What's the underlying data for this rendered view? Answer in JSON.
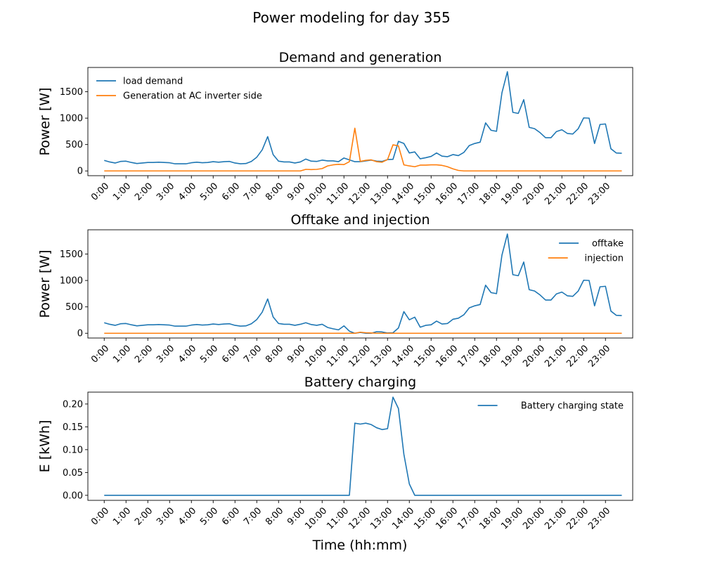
{
  "figure": {
    "suptitle": "Power modeling for day 355",
    "xlabel": "Time (hh:mm)"
  },
  "colors": {
    "blue": "#1f77b4",
    "orange": "#ff7f0e"
  },
  "chart_data": [
    {
      "type": "line",
      "title": "Demand and generation",
      "ylabel": "Power [W]",
      "xlabel": "",
      "xlim": [
        -0.75,
        24.25
      ],
      "ylim": [
        -90,
        1960
      ],
      "yticks": [
        0,
        500,
        1000,
        1500
      ],
      "ytick_labels": [
        "0",
        "500",
        "1000",
        "1500"
      ],
      "xticks": [
        0,
        1,
        2,
        3,
        4,
        5,
        6,
        7,
        8,
        9,
        10,
        11,
        12,
        13,
        14,
        15,
        16,
        17,
        18,
        19,
        20,
        21,
        22,
        23
      ],
      "xtick_labels": [
        "0:00",
        "1:00",
        "2:00",
        "3:00",
        "4:00",
        "5:00",
        "6:00",
        "7:00",
        "8:00",
        "9:00",
        "10:00",
        "11:00",
        "12:00",
        "13:00",
        "14:00",
        "15:00",
        "16:00",
        "17:00",
        "18:00",
        "19:00",
        "20:00",
        "21:00",
        "22:00",
        "23:00"
      ],
      "legend": "top-left",
      "x": [
        0,
        0.25,
        0.5,
        0.75,
        1,
        1.25,
        1.5,
        1.75,
        2,
        2.25,
        2.5,
        2.75,
        3,
        3.25,
        3.5,
        3.75,
        4,
        4.25,
        4.5,
        4.75,
        5,
        5.25,
        5.5,
        5.75,
        6,
        6.25,
        6.5,
        6.75,
        7,
        7.25,
        7.5,
        7.75,
        8,
        8.25,
        8.5,
        8.75,
        9,
        9.25,
        9.5,
        9.75,
        10,
        10.25,
        10.5,
        10.75,
        11,
        11.25,
        11.5,
        11.75,
        12,
        12.25,
        12.5,
        12.75,
        13,
        13.25,
        13.5,
        13.75,
        14,
        14.25,
        14.5,
        14.75,
        15,
        15.25,
        15.5,
        15.75,
        16,
        16.25,
        16.5,
        16.75,
        17,
        17.25,
        17.5,
        17.75,
        18,
        18.25,
        18.5,
        18.75,
        19,
        19.25,
        19.5,
        19.75,
        20,
        20.25,
        20.5,
        20.75,
        21,
        21.25,
        21.5,
        21.75,
        22,
        22.25,
        22.5,
        22.75,
        23,
        23.25,
        23.5,
        23.75
      ],
      "series": [
        {
          "name": "load demand",
          "color": "#1f77b4",
          "values": [
            200,
            170,
            150,
            180,
            185,
            160,
            140,
            150,
            160,
            160,
            165,
            160,
            155,
            135,
            135,
            135,
            155,
            165,
            155,
            160,
            175,
            165,
            175,
            180,
            150,
            135,
            140,
            180,
            260,
            400,
            650,
            310,
            185,
            170,
            170,
            150,
            170,
            225,
            185,
            180,
            205,
            190,
            190,
            175,
            245,
            210,
            175,
            175,
            190,
            205,
            185,
            180,
            215,
            220,
            560,
            520,
            340,
            360,
            230,
            250,
            275,
            340,
            280,
            270,
            310,
            290,
            350,
            480,
            520,
            545,
            910,
            770,
            750,
            1480,
            1880,
            1110,
            1090,
            1350,
            825,
            800,
            725,
            630,
            630,
            745,
            780,
            710,
            700,
            800,
            1005,
            1000,
            520,
            880,
            890,
            420,
            340,
            335
          ]
        },
        {
          "name": "Generation at AC inverter side",
          "color": "#ff7f0e",
          "values": [
            0,
            0,
            0,
            0,
            0,
            0,
            0,
            0,
            0,
            0,
            0,
            0,
            0,
            0,
            0,
            0,
            0,
            0,
            0,
            0,
            0,
            0,
            0,
            0,
            0,
            0,
            0,
            0,
            0,
            0,
            0,
            0,
            0,
            0,
            0,
            0,
            0,
            30,
            25,
            30,
            45,
            95,
            115,
            125,
            120,
            175,
            810,
            180,
            200,
            210,
            175,
            165,
            215,
            495,
            475,
            115,
            95,
            80,
            110,
            110,
            115,
            115,
            105,
            80,
            40,
            10,
            0,
            0,
            0,
            0,
            0,
            0,
            0,
            0,
            0,
            0,
            0,
            0,
            0,
            0,
            0,
            0,
            0,
            0,
            0,
            0,
            0,
            0,
            0,
            0,
            0,
            0,
            0,
            0,
            0,
            0
          ]
        }
      ]
    },
    {
      "type": "line",
      "title": "Offtake and injection",
      "ylabel": "Power [W]",
      "xlabel": "",
      "xlim": [
        -0.75,
        24.25
      ],
      "ylim": [
        -90,
        1960
      ],
      "yticks": [
        0,
        500,
        1000,
        1500
      ],
      "ytick_labels": [
        "0",
        "500",
        "1000",
        "1500"
      ],
      "xticks": [
        0,
        1,
        2,
        3,
        4,
        5,
        6,
        7,
        8,
        9,
        10,
        11,
        12,
        13,
        14,
        15,
        16,
        17,
        18,
        19,
        20,
        21,
        22,
        23
      ],
      "xtick_labels": [
        "0:00",
        "1:00",
        "2:00",
        "3:00",
        "4:00",
        "5:00",
        "6:00",
        "7:00",
        "8:00",
        "9:00",
        "10:00",
        "11:00",
        "12:00",
        "13:00",
        "14:00",
        "15:00",
        "16:00",
        "17:00",
        "18:00",
        "19:00",
        "20:00",
        "21:00",
        "22:00",
        "23:00"
      ],
      "legend": "top-right",
      "x": [
        0,
        0.25,
        0.5,
        0.75,
        1,
        1.25,
        1.5,
        1.75,
        2,
        2.25,
        2.5,
        2.75,
        3,
        3.25,
        3.5,
        3.75,
        4,
        4.25,
        4.5,
        4.75,
        5,
        5.25,
        5.5,
        5.75,
        6,
        6.25,
        6.5,
        6.75,
        7,
        7.25,
        7.5,
        7.75,
        8,
        8.25,
        8.5,
        8.75,
        9,
        9.25,
        9.5,
        9.75,
        10,
        10.25,
        10.5,
        10.75,
        11,
        11.25,
        11.5,
        11.75,
        12,
        12.25,
        12.5,
        12.75,
        13,
        13.25,
        13.5,
        13.75,
        14,
        14.25,
        14.5,
        14.75,
        15,
        15.25,
        15.5,
        15.75,
        16,
        16.25,
        16.5,
        16.75,
        17,
        17.25,
        17.5,
        17.75,
        18,
        18.25,
        18.5,
        18.75,
        19,
        19.25,
        19.5,
        19.75,
        20,
        20.25,
        20.5,
        20.75,
        21,
        21.25,
        21.5,
        21.75,
        22,
        22.25,
        22.5,
        22.75,
        23,
        23.25,
        23.5,
        23.75
      ],
      "series": [
        {
          "name": "offtake",
          "color": "#1f77b4",
          "values": [
            200,
            170,
            150,
            180,
            185,
            160,
            140,
            150,
            160,
            160,
            165,
            160,
            155,
            135,
            135,
            135,
            155,
            165,
            155,
            160,
            175,
            165,
            175,
            180,
            150,
            135,
            140,
            180,
            260,
            400,
            650,
            310,
            185,
            170,
            170,
            150,
            170,
            200,
            165,
            150,
            170,
            110,
            85,
            65,
            140,
            40,
            0,
            15,
            0,
            0,
            30,
            25,
            5,
            10,
            100,
            410,
            255,
            305,
            115,
            150,
            160,
            230,
            175,
            185,
            265,
            285,
            350,
            480,
            520,
            545,
            910,
            770,
            750,
            1480,
            1880,
            1110,
            1090,
            1350,
            825,
            800,
            725,
            630,
            630,
            745,
            780,
            710,
            700,
            800,
            1005,
            1000,
            520,
            880,
            890,
            420,
            340,
            335
          ]
        },
        {
          "name": "injection",
          "color": "#ff7f0e",
          "values": [
            0,
            0,
            0,
            0,
            0,
            0,
            0,
            0,
            0,
            0,
            0,
            0,
            0,
            0,
            0,
            0,
            0,
            0,
            0,
            0,
            0,
            0,
            0,
            0,
            0,
            0,
            0,
            0,
            0,
            0,
            0,
            0,
            0,
            0,
            0,
            0,
            0,
            0,
            0,
            0,
            0,
            0,
            0,
            0,
            0,
            0,
            0,
            20,
            10,
            5,
            0,
            0,
            0,
            0,
            0,
            0,
            0,
            0,
            0,
            0,
            0,
            0,
            0,
            0,
            0,
            0,
            0,
            0,
            0,
            0,
            0,
            0,
            0,
            0,
            0,
            0,
            0,
            0,
            0,
            0,
            0,
            0,
            0,
            0,
            0,
            0,
            0,
            0,
            0,
            0,
            0,
            0,
            0,
            0,
            0,
            0
          ]
        }
      ]
    },
    {
      "type": "line",
      "title": "Battery charging",
      "ylabel": "E [kWh]",
      "xlabel": "Time (hh:mm)",
      "xlim": [
        -0.75,
        24.25
      ],
      "ylim": [
        -0.011,
        0.226
      ],
      "yticks": [
        0,
        0.05,
        0.1,
        0.15,
        0.2
      ],
      "ytick_labels": [
        "0.00",
        "0.05",
        "0.10",
        "0.15",
        "0.20"
      ],
      "xticks": [
        0,
        1,
        2,
        3,
        4,
        5,
        6,
        7,
        8,
        9,
        10,
        11,
        12,
        13,
        14,
        15,
        16,
        17,
        18,
        19,
        20,
        21,
        22,
        23
      ],
      "xtick_labels": [
        "0:00",
        "1:00",
        "2:00",
        "3:00",
        "4:00",
        "5:00",
        "6:00",
        "7:00",
        "8:00",
        "9:00",
        "10:00",
        "11:00",
        "12:00",
        "13:00",
        "14:00",
        "15:00",
        "16:00",
        "17:00",
        "18:00",
        "19:00",
        "20:00",
        "21:00",
        "22:00",
        "23:00"
      ],
      "legend": "top-right",
      "x": [
        0,
        0.25,
        0.5,
        0.75,
        1,
        1.25,
        1.5,
        1.75,
        2,
        2.25,
        2.5,
        2.75,
        3,
        3.25,
        3.5,
        3.75,
        4,
        4.25,
        4.5,
        4.75,
        5,
        5.25,
        5.5,
        5.75,
        6,
        6.25,
        6.5,
        6.75,
        7,
        7.25,
        7.5,
        7.75,
        8,
        8.25,
        8.5,
        8.75,
        9,
        9.25,
        9.5,
        9.75,
        10,
        10.25,
        10.5,
        10.75,
        11,
        11.25,
        11.5,
        11.75,
        12,
        12.25,
        12.5,
        12.75,
        13,
        13.25,
        13.5,
        13.75,
        14,
        14.25,
        14.5,
        14.75,
        15,
        15.25,
        15.5,
        15.75,
        16,
        16.25,
        16.5,
        16.75,
        17,
        17.25,
        17.5,
        17.75,
        18,
        18.25,
        18.5,
        18.75,
        19,
        19.25,
        19.5,
        19.75,
        20,
        20.25,
        20.5,
        20.75,
        21,
        21.25,
        21.5,
        21.75,
        22,
        22.25,
        22.5,
        22.75,
        23,
        23.25,
        23.5,
        23.75
      ],
      "series": [
        {
          "name": "Battery charging state",
          "color": "#1f77b4",
          "values": [
            0,
            0,
            0,
            0,
            0,
            0,
            0,
            0,
            0,
            0,
            0,
            0,
            0,
            0,
            0,
            0,
            0,
            0,
            0,
            0,
            0,
            0,
            0,
            0,
            0,
            0,
            0,
            0,
            0,
            0,
            0,
            0,
            0,
            0,
            0,
            0,
            0,
            0,
            0,
            0,
            0,
            0,
            0,
            0,
            0,
            0,
            0.158,
            0.156,
            0.158,
            0.155,
            0.148,
            0.144,
            0.146,
            0.215,
            0.19,
            0.09,
            0.025,
            0,
            0,
            0,
            0,
            0,
            0,
            0,
            0,
            0,
            0,
            0,
            0,
            0,
            0,
            0,
            0,
            0,
            0,
            0,
            0,
            0,
            0,
            0,
            0,
            0,
            0,
            0,
            0,
            0,
            0,
            0,
            0,
            0,
            0,
            0,
            0,
            0,
            0,
            0
          ]
        }
      ]
    }
  ]
}
